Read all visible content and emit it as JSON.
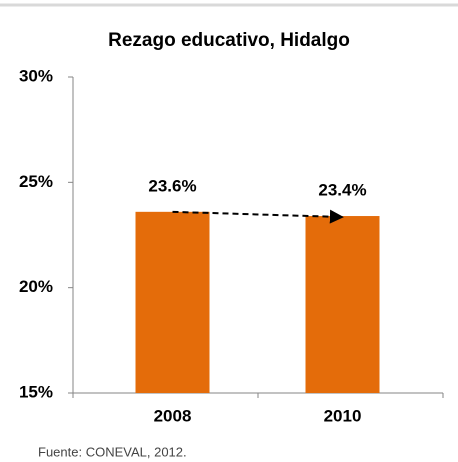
{
  "chart_data": {
    "type": "bar",
    "title": "Rezago educativo, Hidalgo",
    "categories": [
      "2008",
      "2010"
    ],
    "values": [
      23.6,
      23.4
    ],
    "value_labels": [
      "23.6%",
      "23.4%"
    ],
    "color": "#e46c0a",
    "ylim": [
      15,
      30
    ],
    "yticks": [
      {
        "value": 15,
        "label": "15%"
      },
      {
        "value": 20,
        "label": "20%"
      },
      {
        "value": 25,
        "label": "25%"
      },
      {
        "value": 30,
        "label": "30%"
      }
    ],
    "source": "Fuente: CONEVAL, 2012."
  }
}
